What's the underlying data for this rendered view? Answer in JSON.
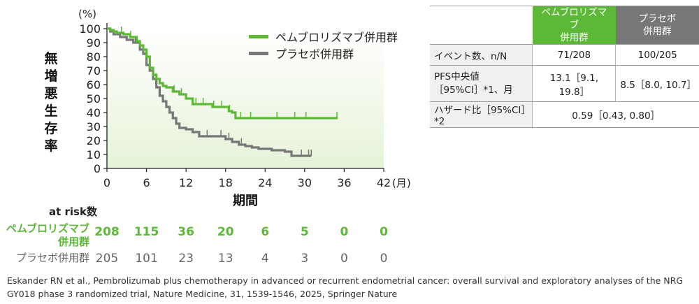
{
  "chart_data": {
    "type": "line",
    "ylabel": "無増悪生存率",
    "y_unit": "(%)",
    "xlabel": "期間",
    "x_unit": "(月)",
    "xlim": [
      0,
      42
    ],
    "ylim": [
      0,
      100
    ],
    "x_ticks": [
      0,
      6,
      12,
      18,
      24,
      30,
      36,
      42
    ],
    "y_ticks": [
      0,
      10,
      20,
      30,
      40,
      50,
      60,
      70,
      80,
      90,
      100
    ],
    "series": [
      {
        "name": "ペムブロリズマブ併用群",
        "color": "#5eb838",
        "points": [
          [
            0,
            100
          ],
          [
            0.5,
            99
          ],
          [
            1,
            98
          ],
          [
            1.5,
            97
          ],
          [
            2.5,
            96
          ],
          [
            3.5,
            94
          ],
          [
            4.5,
            91
          ],
          [
            5,
            88
          ],
          [
            5.5,
            85
          ],
          [
            6,
            80
          ],
          [
            6.5,
            72
          ],
          [
            7,
            67
          ],
          [
            7.5,
            64
          ],
          [
            8,
            61
          ],
          [
            8.5,
            59
          ],
          [
            9,
            58
          ],
          [
            10,
            55
          ],
          [
            11,
            53
          ],
          [
            12,
            50
          ],
          [
            13,
            46
          ],
          [
            15,
            46
          ],
          [
            16,
            44
          ],
          [
            18,
            44
          ],
          [
            18.5,
            41
          ],
          [
            19,
            40
          ],
          [
            19.5,
            36
          ],
          [
            21,
            36
          ],
          [
            25,
            36
          ],
          [
            30,
            36
          ],
          [
            35,
            36
          ]
        ],
        "censor_x": [
          2.2,
          3.6,
          10.2,
          11.3,
          13.5,
          14.6,
          16.2,
          17.4,
          18.6,
          20.3,
          21.8,
          25.8,
          28.5,
          30.2,
          34.9
        ]
      },
      {
        "name": "プラセボ併用群",
        "color": "#777777",
        "points": [
          [
            0,
            100
          ],
          [
            0.5,
            98
          ],
          [
            1,
            96
          ],
          [
            2,
            94
          ],
          [
            3,
            92
          ],
          [
            4,
            90
          ],
          [
            5,
            85
          ],
          [
            5.5,
            82
          ],
          [
            6,
            74
          ],
          [
            6.5,
            70
          ],
          [
            7,
            64
          ],
          [
            7.5,
            58
          ],
          [
            8,
            52
          ],
          [
            8.5,
            48
          ],
          [
            9,
            44
          ],
          [
            9.5,
            40
          ],
          [
            10,
            36
          ],
          [
            10.5,
            32
          ],
          [
            11,
            29
          ],
          [
            12,
            28
          ],
          [
            13,
            26
          ],
          [
            14,
            23
          ],
          [
            17,
            23
          ],
          [
            18,
            21
          ],
          [
            19,
            19
          ],
          [
            20,
            17
          ],
          [
            21,
            16
          ],
          [
            22,
            15
          ],
          [
            23,
            14
          ],
          [
            25,
            13
          ],
          [
            27,
            12
          ],
          [
            28,
            9
          ],
          [
            30,
            9
          ],
          [
            31,
            9
          ]
        ],
        "censor_x": [
          4.3,
          15.2,
          17.3,
          18.5,
          20.4,
          29.5,
          30.6,
          31.0
        ]
      }
    ],
    "legend_position": "top-center"
  },
  "at_risk": {
    "title": "at risk数",
    "times": [
      0,
      6,
      12,
      18,
      24,
      30,
      36,
      42
    ],
    "rows": [
      {
        "label_lines": [
          "ペムブロリズマブ",
          "併用群"
        ],
        "values": [
          "208",
          "115",
          "36",
          "20",
          "6",
          "5",
          "0",
          "0"
        ]
      },
      {
        "label_lines": [
          "プラセボ併用群"
        ],
        "values": [
          "205",
          "101",
          "23",
          "13",
          "4",
          "3",
          "0",
          "0"
        ]
      }
    ]
  },
  "table": {
    "headers": [
      "ペムブロリズマブ\n併用群",
      "プラセボ\n併用群"
    ],
    "header_colors": [
      "#5eb838",
      "#777777"
    ],
    "rows": [
      {
        "label": "イベント数、n/N",
        "values": [
          "71/208",
          "100/205"
        ]
      },
      {
        "label": "PFS中央値\n［95%CI］*1、月",
        "values": [
          "13.1［9.1, 19.8］",
          "8.5［8.0, 10.7］"
        ]
      },
      {
        "label": "ハザード比［95%CI］*2",
        "merged": "0.59［0.43, 0.80］"
      }
    ]
  },
  "citation": "Eskander RN et al., Pembrolizumab plus chemotherapy in advanced or recurrent endometrial cancer: overall survival and exploratory analyses of the NRG GY018 phase 3 randomized trial, Nature Medicine, 31, 1539-1546, 2025, Springer Nature"
}
